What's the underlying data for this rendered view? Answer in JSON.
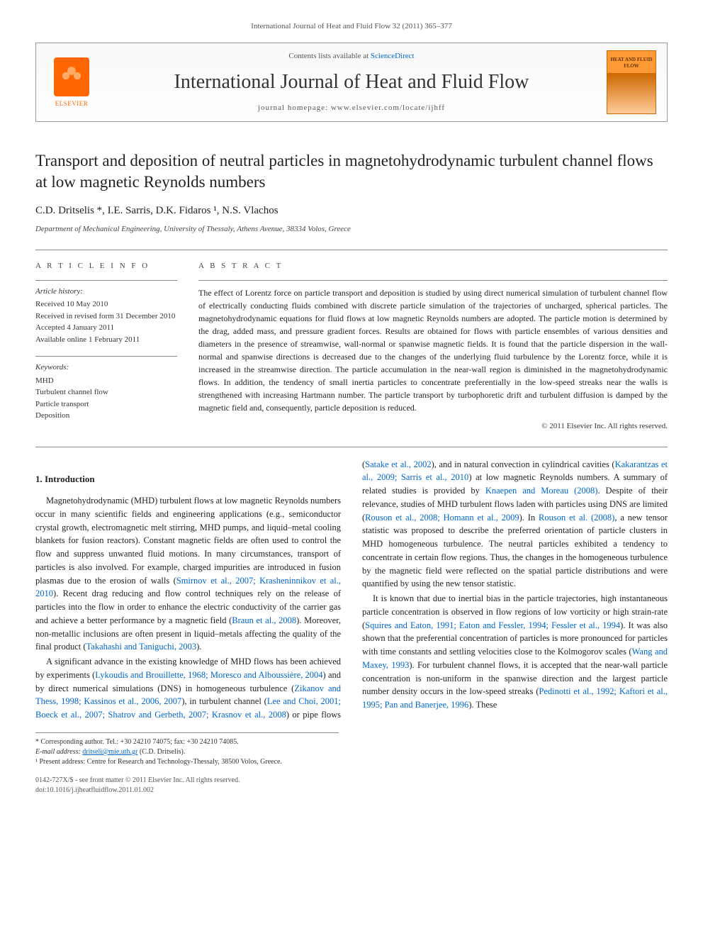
{
  "header": {
    "citation": "International Journal of Heat and Fluid Flow 32 (2011) 365–377",
    "contents_prefix": "Contents lists available at ",
    "contents_link": "ScienceDirect",
    "journal_name": "International Journal of Heat and Fluid Flow",
    "homepage_prefix": "journal homepage: ",
    "homepage_url": "www.elsevier.com/locate/ijhff",
    "publisher": "ELSEVIER",
    "cover_text": "HEAT AND FLUID FLOW"
  },
  "article": {
    "title": "Transport and deposition of neutral particles in magnetohydrodynamic turbulent channel flows at low magnetic Reynolds numbers",
    "authors": "C.D. Dritselis *, I.E. Sarris, D.K. Fidaros ¹, N.S. Vlachos",
    "affiliation": "Department of Mechanical Engineering, University of Thessaly, Athens Avenue, 38334 Volos, Greece"
  },
  "info": {
    "heading_info": "A R T I C L E   I N F O",
    "heading_abstract": "A B S T R A C T",
    "history_label": "Article history:",
    "history": "Received 10 May 2010\nReceived in revised form 31 December 2010\nAccepted 4 January 2011\nAvailable online 1 February 2011",
    "keywords_label": "Keywords:",
    "keywords": "MHD\nTurbulent channel flow\nParticle transport\nDeposition"
  },
  "abstract": {
    "text": "The effect of Lorentz force on particle transport and deposition is studied by using direct numerical simulation of turbulent channel flow of electrically conducting fluids combined with discrete particle simulation of the trajectories of uncharged, spherical particles. The magnetohydrodynamic equations for fluid flows at low magnetic Reynolds numbers are adopted. The particle motion is determined by the drag, added mass, and pressure gradient forces. Results are obtained for flows with particle ensembles of various densities and diameters in the presence of streamwise, wall-normal or spanwise magnetic fields. It is found that the particle dispersion in the wall-normal and spanwise directions is decreased due to the changes of the underlying fluid turbulence by the Lorentz force, while it is increased in the streamwise direction. The particle accumulation in the near-wall region is diminished in the magnetohydrodynamic flows. In addition, the tendency of small inertia particles to concentrate preferentially in the low-speed streaks near the walls is strengthened with increasing Hartmann number. The particle transport by turbophoretic drift and turbulent diffusion is damped by the magnetic field and, consequently, particle deposition is reduced.",
    "copyright": "© 2011 Elsevier Inc. All rights reserved."
  },
  "body": {
    "section_heading": "1. Introduction",
    "p1_a": "Magnetohydrodynamic (MHD) turbulent flows at low magnetic Reynolds numbers occur in many scientific fields and engineering applications (e.g., semiconductor crystal growth, electromagnetic melt stirring, MHD pumps, and liquid–metal cooling blankets for fusion reactors). Constant magnetic fields are often used to control the flow and suppress unwanted fluid motions. In many circumstances, transport of particles is also involved. For example, charged impurities are introduced in fusion plasmas due to the erosion of walls (",
    "p1_ref1": "Smirnov et al., 2007; Krasheninnikov et al., 2010",
    "p1_b": "). Recent drag reducing and flow control techniques rely on the release of particles into the flow in order to enhance the electric conductivity of the carrier gas and achieve a better performance by a magnetic field (",
    "p1_ref2": "Braun et al., 2008",
    "p1_c": "). Moreover, non-metallic inclusions are often present in liquid–metals affecting the quality of the final product (",
    "p1_ref3": "Takahashi and Taniguchi, 2003",
    "p1_d": ").",
    "p2_a": "A significant advance in the existing knowledge of MHD flows has been achieved by experiments (",
    "p2_ref1": "Lykoudis and Brouillette, 1968; Moresco and Alboussière, 2004",
    "p2_b": ") and by direct numerical simulations (DNS) in homogeneous turbulence (",
    "p2_ref2": "Zikanov and Thess, 1998; Kassinos et al., 2006, 2007",
    "p2_c": "), in turbulent channel (",
    "p2_ref3": "Lee and Choi, 2001; Boeck et al., 2007; Shatrov and Gerbeth, 2007; Krasnov et al., 2008",
    "p2_d": ") or pipe flows (",
    "p2_ref4": "Satake et al., 2002",
    "p2_e": "), and in natural convection in cylindrical cavities (",
    "p2_ref5": "Kakarantzas et al., 2009; Sarris et al., 2010",
    "p2_f": ") at low magnetic Reynolds numbers. A summary of related studies is provided by ",
    "p2_ref6": "Knaepen and Moreau (2008)",
    "p2_g": ". Despite of their relevance, studies of MHD turbulent flows laden with particles using DNS are limited (",
    "p2_ref7": "Rouson et al., 2008; Homann et al., 2009",
    "p2_h": "). In ",
    "p2_ref8": "Rouson et al. (2008)",
    "p2_i": ", a new tensor statistic was proposed to describe the preferred orientation of particle clusters in MHD homogeneous turbulence. The neutral particles exhibited a tendency to concentrate in certain flow regions. Thus, the changes in the homogeneous turbulence by the magnetic field were reflected on the spatial particle distributions and were quantified by using the new tensor statistic.",
    "p3_a": "It is known that due to inertial bias in the particle trajectories, high instantaneous particle concentration is observed in flow regions of low vorticity or high strain-rate (",
    "p3_ref1": "Squires and Eaton, 1991; Eaton and Fessler, 1994; Fessler et al., 1994",
    "p3_b": "). It was also shown that the preferential concentration of particles is more pronounced for particles with time constants and settling velocities close to the Kolmogorov scales (",
    "p3_ref2": "Wang and Maxey, 1993",
    "p3_c": "). For turbulent channel flows, it is accepted that the near-wall particle concentration is non-uniform in the spanwise direction and the largest particle number density occurs in the low-speed streaks (",
    "p3_ref3": "Pedinotti et al., 1992; Kaftori et al., 1995; Pan and Banerjee, 1996",
    "p3_d": "). These"
  },
  "footnotes": {
    "corr": "* Corresponding author. Tel.: +30 24210 74075; fax: +30 24210 74085.",
    "email_label": "E-mail address: ",
    "email": "dritseli@mie.uth.gr",
    "email_who": " (C.D. Dritselis).",
    "note1": "¹ Present address: Centre for Research and Technology-Thessaly, 38500 Volos, Greece."
  },
  "footer": {
    "line1": "0142-727X/$ - see front matter © 2011 Elsevier Inc. All rights reserved.",
    "line2": "doi:10.1016/j.ijheatfluidflow.2011.01.002"
  },
  "colors": {
    "link": "#0066cc",
    "elsevier_orange": "#ff6600",
    "text": "#222222",
    "muted": "#555555",
    "border": "#888888"
  }
}
